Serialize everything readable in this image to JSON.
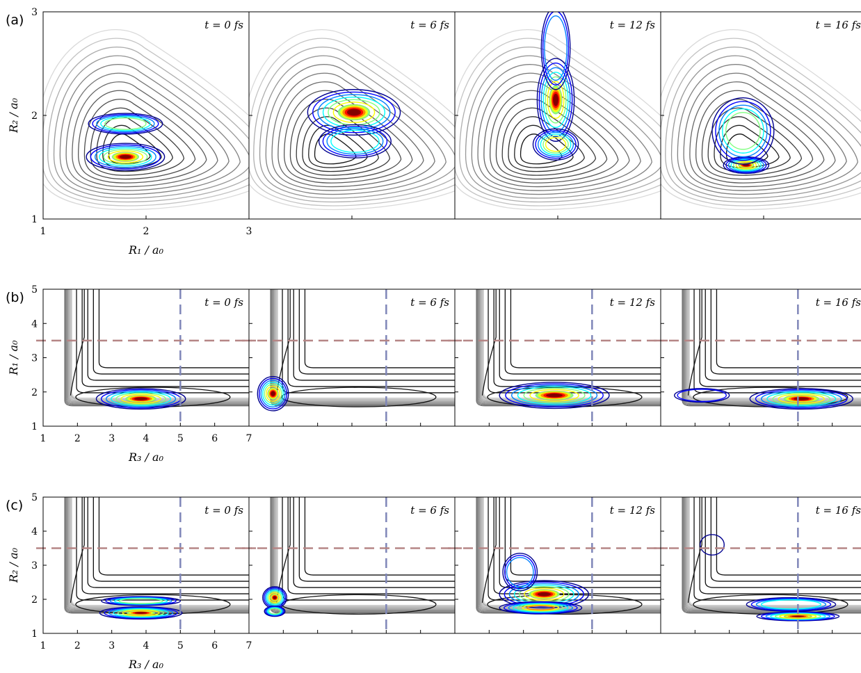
{
  "figure": {
    "rows": [
      {
        "label": "(a)",
        "xlabel": "R₁ / a₀",
        "ylabel": "R₂ / a₀",
        "xlim": [
          1,
          3
        ],
        "ylim": [
          1,
          3
        ],
        "xticks": [
          "1",
          "2",
          "3"
        ],
        "yticks": [
          "1",
          "2",
          "3"
        ],
        "panels": [
          {
            "time": "t = 0 fs",
            "packets": [
              {
                "x": 1.8,
                "y": 1.6,
                "rx": 0.38,
                "ry": 0.13,
                "peak": 1.0
              },
              {
                "x": 1.8,
                "y": 1.92,
                "rx": 0.36,
                "ry": 0.1,
                "peak": 0.55
              }
            ]
          },
          {
            "time": "t = 6 fs",
            "packets": [
              {
                "x": 2.02,
                "y": 2.03,
                "rx": 0.45,
                "ry": 0.22,
                "peak": 1.0
              },
              {
                "x": 2.03,
                "y": 1.75,
                "rx": 0.35,
                "ry": 0.16,
                "peak": 0.45
              }
            ]
          },
          {
            "time": "t = 12 fs",
            "packets": [
              {
                "x": 1.98,
                "y": 2.15,
                "rx": 0.18,
                "ry": 0.4,
                "peak": 1.0
              },
              {
                "x": 1.98,
                "y": 1.72,
                "rx": 0.22,
                "ry": 0.15,
                "peak": 0.7
              },
              {
                "x": 1.98,
                "y": 2.65,
                "rx": 0.14,
                "ry": 0.4,
                "peak": 0.35
              }
            ]
          },
          {
            "time": "t = 16 fs",
            "packets": [
              {
                "x": 1.83,
                "y": 1.52,
                "rx": 0.22,
                "ry": 0.08,
                "peak": 1.0
              },
              {
                "x": 1.8,
                "y": 1.85,
                "rx": 0.3,
                "ry": 0.32,
                "peak": 0.5
              }
            ]
          }
        ],
        "dashed_lines": []
      },
      {
        "label": "(b)",
        "xlabel": "R₃ / a₀",
        "ylabel": "R₁ / a₀",
        "xlim": [
          1,
          7
        ],
        "ylim": [
          1,
          5
        ],
        "xticks": [
          "1",
          "2",
          "3",
          "4",
          "5",
          "6",
          "7"
        ],
        "yticks": [
          "1",
          "2",
          "3",
          "4",
          "5"
        ],
        "panels": [
          {
            "time": "t = 0 fs",
            "packets": [
              {
                "x": 3.85,
                "y": 1.8,
                "rx": 1.3,
                "ry": 0.3,
                "peak": 1.0
              }
            ]
          },
          {
            "time": "t = 6 fs",
            "packets": [
              {
                "x": 1.7,
                "y": 1.95,
                "rx": 0.45,
                "ry": 0.5,
                "peak": 1.0
              }
            ]
          },
          {
            "time": "t = 12 fs",
            "packets": [
              {
                "x": 3.9,
                "y": 1.9,
                "rx": 1.6,
                "ry": 0.38,
                "peak": 1.0
              }
            ]
          },
          {
            "time": "t = 16 fs",
            "packets": [
              {
                "x": 5.1,
                "y": 1.8,
                "rx": 1.5,
                "ry": 0.3,
                "peak": 1.0
              },
              {
                "x": 2.2,
                "y": 1.9,
                "rx": 0.8,
                "ry": 0.2,
                "peak": 0.25
              }
            ]
          }
        ],
        "dashed_lines": [
          {
            "orientation": "vertical",
            "value": 5,
            "color": "#7f86b8"
          },
          {
            "orientation": "horizontal",
            "value": 3.5,
            "color": "#b58585"
          }
        ]
      },
      {
        "label": "(c)",
        "xlabel": "R₃ / a₀",
        "ylabel": "R₂ / a₀",
        "xlim": [
          1,
          7
        ],
        "ylim": [
          1,
          5
        ],
        "xticks": [
          "1",
          "2",
          "3",
          "4",
          "5",
          "6",
          "7"
        ],
        "yticks": [
          "1",
          "2",
          "3",
          "4",
          "5"
        ],
        "panels": [
          {
            "time": "t = 0 fs",
            "packets": [
              {
                "x": 3.85,
                "y": 1.6,
                "rx": 1.2,
                "ry": 0.18,
                "peak": 1.0
              },
              {
                "x": 3.85,
                "y": 1.95,
                "rx": 1.15,
                "ry": 0.13,
                "peak": 0.6
              }
            ]
          },
          {
            "time": "t = 6 fs",
            "packets": [
              {
                "x": 1.75,
                "y": 2.05,
                "rx": 0.35,
                "ry": 0.32,
                "peak": 1.0
              },
              {
                "x": 1.75,
                "y": 1.65,
                "rx": 0.3,
                "ry": 0.15,
                "peak": 0.5
              }
            ]
          },
          {
            "time": "t = 12 fs",
            "packets": [
              {
                "x": 3.6,
                "y": 2.15,
                "rx": 1.3,
                "ry": 0.4,
                "peak": 1.0
              },
              {
                "x": 3.5,
                "y": 1.75,
                "rx": 1.2,
                "ry": 0.18,
                "peak": 0.75
              },
              {
                "x": 2.9,
                "y": 2.8,
                "rx": 0.5,
                "ry": 0.55,
                "peak": 0.3
              }
            ]
          },
          {
            "time": "t = 16 fs",
            "packets": [
              {
                "x": 5.0,
                "y": 1.5,
                "rx": 1.2,
                "ry": 0.13,
                "peak": 1.0
              },
              {
                "x": 4.8,
                "y": 1.85,
                "rx": 1.3,
                "ry": 0.2,
                "peak": 0.45
              },
              {
                "x": 2.5,
                "y": 3.6,
                "rx": 0.35,
                "ry": 0.3,
                "peak": 0.12
              }
            ]
          }
        ],
        "dashed_lines": [
          {
            "orientation": "vertical",
            "value": 5,
            "color": "#7f86b8"
          },
          {
            "orientation": "horizontal",
            "value": 3.5,
            "color": "#b58585"
          }
        ]
      }
    ]
  },
  "chart_data": [
    {
      "type": "contour",
      "row_label": "(a)",
      "xlabel": "R₁ / a₀",
      "ylabel": "R₂ / a₀",
      "xlim": [
        1,
        3
      ],
      "ylim": [
        1,
        3
      ],
      "panels": [
        "t = 0 fs",
        "t = 6 fs",
        "t = 12 fs",
        "t = 16 fs"
      ],
      "wavepacket_peak_positions": [
        {
          "t_fs": 0,
          "R1": 1.8,
          "R2": 1.6
        },
        {
          "t_fs": 6,
          "R1": 2.02,
          "R2": 2.03
        },
        {
          "t_fs": 12,
          "R1": 1.98,
          "R2": 2.15
        },
        {
          "t_fs": 16,
          "R1": 1.83,
          "R2": 1.52
        }
      ]
    },
    {
      "type": "contour",
      "row_label": "(b)",
      "xlabel": "R₃ / a₀",
      "ylabel": "R₁ / a₀",
      "xlim": [
        1,
        7
      ],
      "ylim": [
        1,
        5
      ],
      "panels": [
        "t = 0 fs",
        "t = 6 fs",
        "t = 12 fs",
        "t = 16 fs"
      ],
      "dashed_reference_lines": {
        "R3": 5,
        "R1": 3.5
      },
      "wavepacket_peak_positions": [
        {
          "t_fs": 0,
          "R3": 3.85,
          "R1": 1.8
        },
        {
          "t_fs": 6,
          "R3": 1.7,
          "R1": 1.95
        },
        {
          "t_fs": 12,
          "R3": 3.9,
          "R1": 1.9
        },
        {
          "t_fs": 16,
          "R3": 5.1,
          "R1": 1.8
        }
      ]
    },
    {
      "type": "contour",
      "row_label": "(c)",
      "xlabel": "R₃ / a₀",
      "ylabel": "R₂ / a₀",
      "xlim": [
        1,
        7
      ],
      "ylim": [
        1,
        5
      ],
      "panels": [
        "t = 0 fs",
        "t = 6 fs",
        "t = 12 fs",
        "t = 16 fs"
      ],
      "dashed_reference_lines": {
        "R3": 5,
        "R2": 3.5
      },
      "wavepacket_peak_positions": [
        {
          "t_fs": 0,
          "R3": 3.85,
          "R2": 1.6
        },
        {
          "t_fs": 6,
          "R3": 1.75,
          "R2": 2.05
        },
        {
          "t_fs": 12,
          "R3": 3.6,
          "R2": 2.15
        },
        {
          "t_fs": 16,
          "R3": 5.0,
          "R2": 1.5
        }
      ]
    }
  ],
  "colors": {
    "contour_jet": [
      "#00008f",
      "#0000ff",
      "#0080ff",
      "#00ffff",
      "#80ff80",
      "#ffff00",
      "#ff8000",
      "#ff0000",
      "#800000"
    ],
    "dashed_vertical": "#7f86b8",
    "dashed_horizontal": "#b58585"
  }
}
